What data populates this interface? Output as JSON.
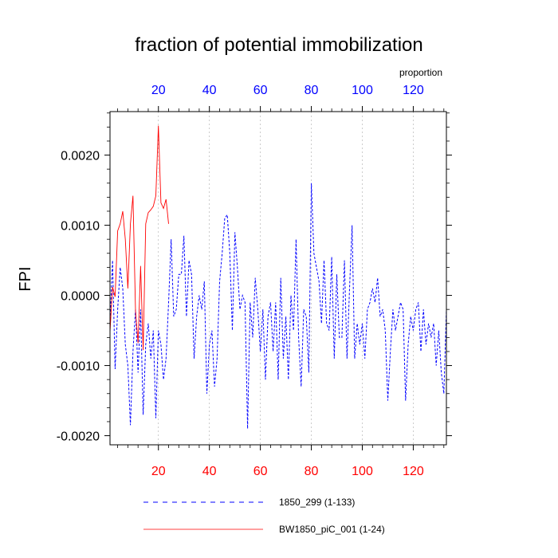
{
  "chart_data": {
    "type": "line",
    "title": "fraction of potential immobilization",
    "ylabel": "FPI",
    "top_axis_label": "proportion",
    "xlim": [
      1,
      133
    ],
    "ylim": [
      -0.00213,
      0.00262
    ],
    "x_ticks": [
      20,
      40,
      60,
      80,
      100,
      120
    ],
    "y_ticks": [
      -0.002,
      -0.001,
      0.0,
      0.001,
      0.002
    ],
    "y_tick_labels": [
      "-0.0020",
      "-0.0010",
      "0.0000",
      "0.0010",
      "0.0020"
    ],
    "grid": "vertical dotted at x ticks",
    "legend_position": "bottom",
    "colors": {
      "bottom_ticks": "#ff0000",
      "top_ticks": "#0000ff",
      "series_1850_299": "#0000ff",
      "series_BW1850": "#ff0000",
      "grid": "#aaaaaa"
    },
    "series": [
      {
        "name": "1850_299 (1-133)",
        "style": "dashed",
        "x": [
          1,
          2,
          3,
          4,
          5,
          6,
          7,
          8,
          9,
          10,
          11,
          12,
          13,
          14,
          15,
          16,
          17,
          18,
          19,
          20,
          21,
          22,
          23,
          24,
          25,
          26,
          27,
          28,
          29,
          30,
          31,
          32,
          33,
          34,
          35,
          36,
          37,
          38,
          39,
          40,
          41,
          42,
          43,
          44,
          45,
          46,
          47,
          48,
          49,
          50,
          51,
          52,
          53,
          54,
          55,
          56,
          57,
          58,
          59,
          60,
          61,
          62,
          63,
          64,
          65,
          66,
          67,
          68,
          69,
          70,
          71,
          72,
          73,
          74,
          75,
          76,
          77,
          78,
          79,
          80,
          81,
          82,
          83,
          84,
          85,
          86,
          87,
          88,
          89,
          90,
          91,
          92,
          93,
          94,
          95,
          96,
          97,
          98,
          99,
          100,
          101,
          102,
          103,
          104,
          105,
          106,
          107,
          108,
          109,
          110,
          111,
          112,
          113,
          114,
          115,
          116,
          117,
          118,
          119,
          120,
          121,
          122,
          123,
          124,
          125,
          126,
          127,
          128,
          129,
          130,
          131,
          132,
          133
        ],
        "y": [
          -0.0004,
          0.0005,
          -0.00105,
          -0.0002,
          0.0004,
          0.0001,
          -0.0007,
          -0.001,
          -0.00185,
          -0.0008,
          -0.0002,
          -0.0011,
          -0.0002,
          -0.0017,
          -0.0007,
          -0.0004,
          -0.0009,
          -0.0005,
          -0.00175,
          -0.0005,
          -0.0007,
          -0.0012,
          -0.0009,
          -0.0001,
          0.0008,
          -0.0003,
          -0.0002,
          0.0003,
          0.0003,
          0.00085,
          -0.0003,
          0.0005,
          0.0003,
          -0.0009,
          -0.0003,
          0.0,
          -0.0002,
          0.0002,
          -0.0014,
          -0.0007,
          -0.0005,
          -0.0013,
          -0.0009,
          0.0002,
          0.0006,
          0.0011,
          0.00115,
          0.0006,
          -0.0005,
          0.0009,
          0.0004,
          -0.0002,
          0.0,
          -0.0001,
          -0.0019,
          -0.0001,
          -0.0006,
          0.00025,
          -0.0002,
          -0.0008,
          -0.0002,
          -0.0012,
          -0.0003,
          -0.0001,
          -0.0008,
          -0.0001,
          -0.0012,
          0.00025,
          -0.0009,
          -0.0003,
          -0.0012,
          0.0,
          -0.0005,
          0.0008,
          -0.0006,
          -0.0013,
          -0.0002,
          -0.0003,
          -0.0011,
          0.0016,
          0.0006,
          0.0004,
          0.0002,
          -0.0004,
          0.0005,
          -0.0004,
          -0.0005,
          0.00055,
          -0.0009,
          0.0003,
          -0.0006,
          -0.0006,
          0.0005,
          -0.0009,
          0.0001,
          0.001,
          -0.0009,
          -0.0004,
          -0.0007,
          -0.0004,
          -0.0009,
          -0.0002,
          -0.0001,
          0.0001,
          -0.0001,
          0.00025,
          -0.0003,
          -0.0002,
          -0.0005,
          -0.0015,
          -0.0008,
          -0.0002,
          -0.0005,
          -0.0003,
          -0.0001,
          -0.0002,
          -0.0015,
          -0.0007,
          -0.0003,
          -0.0005,
          -0.0002,
          -0.0001,
          -0.0008,
          -0.0002,
          -0.0007,
          -0.0004,
          -0.0006,
          -0.0004,
          -0.001,
          -0.0005,
          -0.0011,
          -0.0014,
          -0.0002
        ]
      },
      {
        "name": "BW1850_piC_001 (1-24)",
        "style": "solid",
        "x": [
          1,
          2,
          3,
          4,
          5,
          6,
          7,
          8,
          9,
          10,
          11,
          12,
          13,
          14,
          15,
          16,
          17,
          18,
          19,
          20,
          21,
          22,
          23,
          24
        ],
        "y": [
          -0.00052,
          0.00012,
          -2e-05,
          0.00092,
          0.00102,
          0.0012,
          0.0008,
          0.0001,
          0.00102,
          0.00142,
          -0.00022,
          -0.00068,
          0.00042,
          -0.00078,
          0.00102,
          0.00118,
          0.00122,
          0.00127,
          0.00142,
          0.00242,
          0.00132,
          0.00124,
          0.00137,
          0.00102
        ]
      }
    ]
  }
}
